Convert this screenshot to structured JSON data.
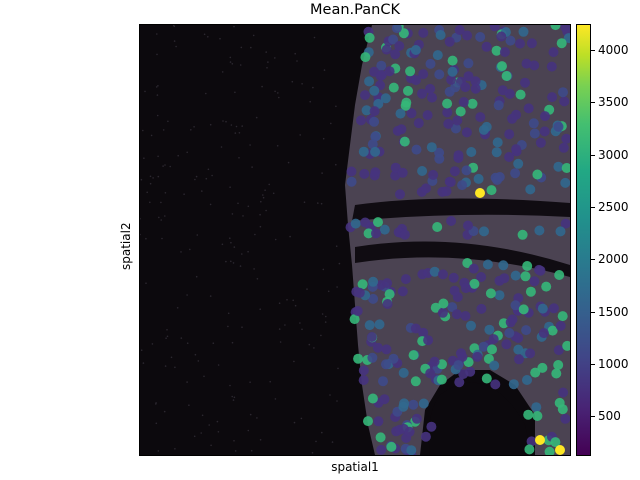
{
  "title": "Mean.PanCK",
  "xlabel": "spatial1",
  "ylabel": "spatial2",
  "colorbar": {
    "colormap": "viridis",
    "range": [
      120,
      4250
    ],
    "ticks": [
      "500",
      "1000",
      "1500",
      "2000",
      "2500",
      "3000",
      "3500",
      "4000"
    ]
  },
  "colors": {
    "background_dark": "#0c090d",
    "tissue_gray": "#5e5662",
    "cell_low": "#46337e",
    "cell_mid": "#31688e",
    "cell_high": "#35b779",
    "cell_max": "#fde725"
  }
}
